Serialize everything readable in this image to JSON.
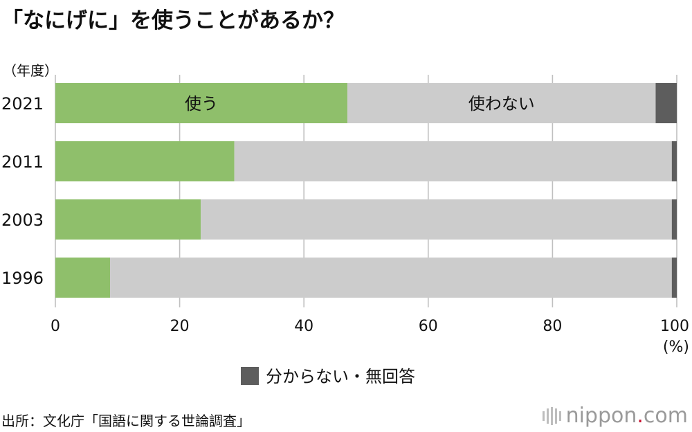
{
  "title": "「なにげに」を使うことがあるか？",
  "unit_label": "（年度）",
  "source": "出所：文化庁「国語に関する世論調査」",
  "brand": {
    "name": "nippon",
    "dot": ".",
    "tld": "com",
    "icon": "nippon-logo-icon"
  },
  "colors": {
    "use": "#8fbf6b",
    "not_use": "#cccccc",
    "unknown": "#5d5d5d",
    "grid": "#c0c0c0"
  },
  "chart_data": {
    "type": "bar",
    "orientation": "horizontal",
    "stacked": true,
    "title": "「なにげに」を使うことがあるか？",
    "ylabel": "（年度）",
    "xlabel_unit": "(%)",
    "categories": [
      "2021",
      "2011",
      "2003",
      "1996"
    ],
    "series": [
      {
        "name": "使う",
        "values": [
          47.0,
          28.8,
          23.4,
          8.8
        ]
      },
      {
        "name": "使わない",
        "values": [
          49.6,
          70.4,
          75.8,
          90.4
        ]
      },
      {
        "name": "分からない・無回答",
        "values": [
          3.4,
          0.8,
          0.8,
          0.8
        ]
      }
    ],
    "xlim": [
      0,
      100
    ],
    "xticks": [
      0,
      20,
      40,
      60,
      80,
      100
    ],
    "xtick_labels": [
      "0",
      "20",
      "40",
      "60",
      "80",
      "100"
    ],
    "grid": true,
    "legend": {
      "position": "bottom-center",
      "entries": [
        "分からない・無回答"
      ]
    }
  }
}
